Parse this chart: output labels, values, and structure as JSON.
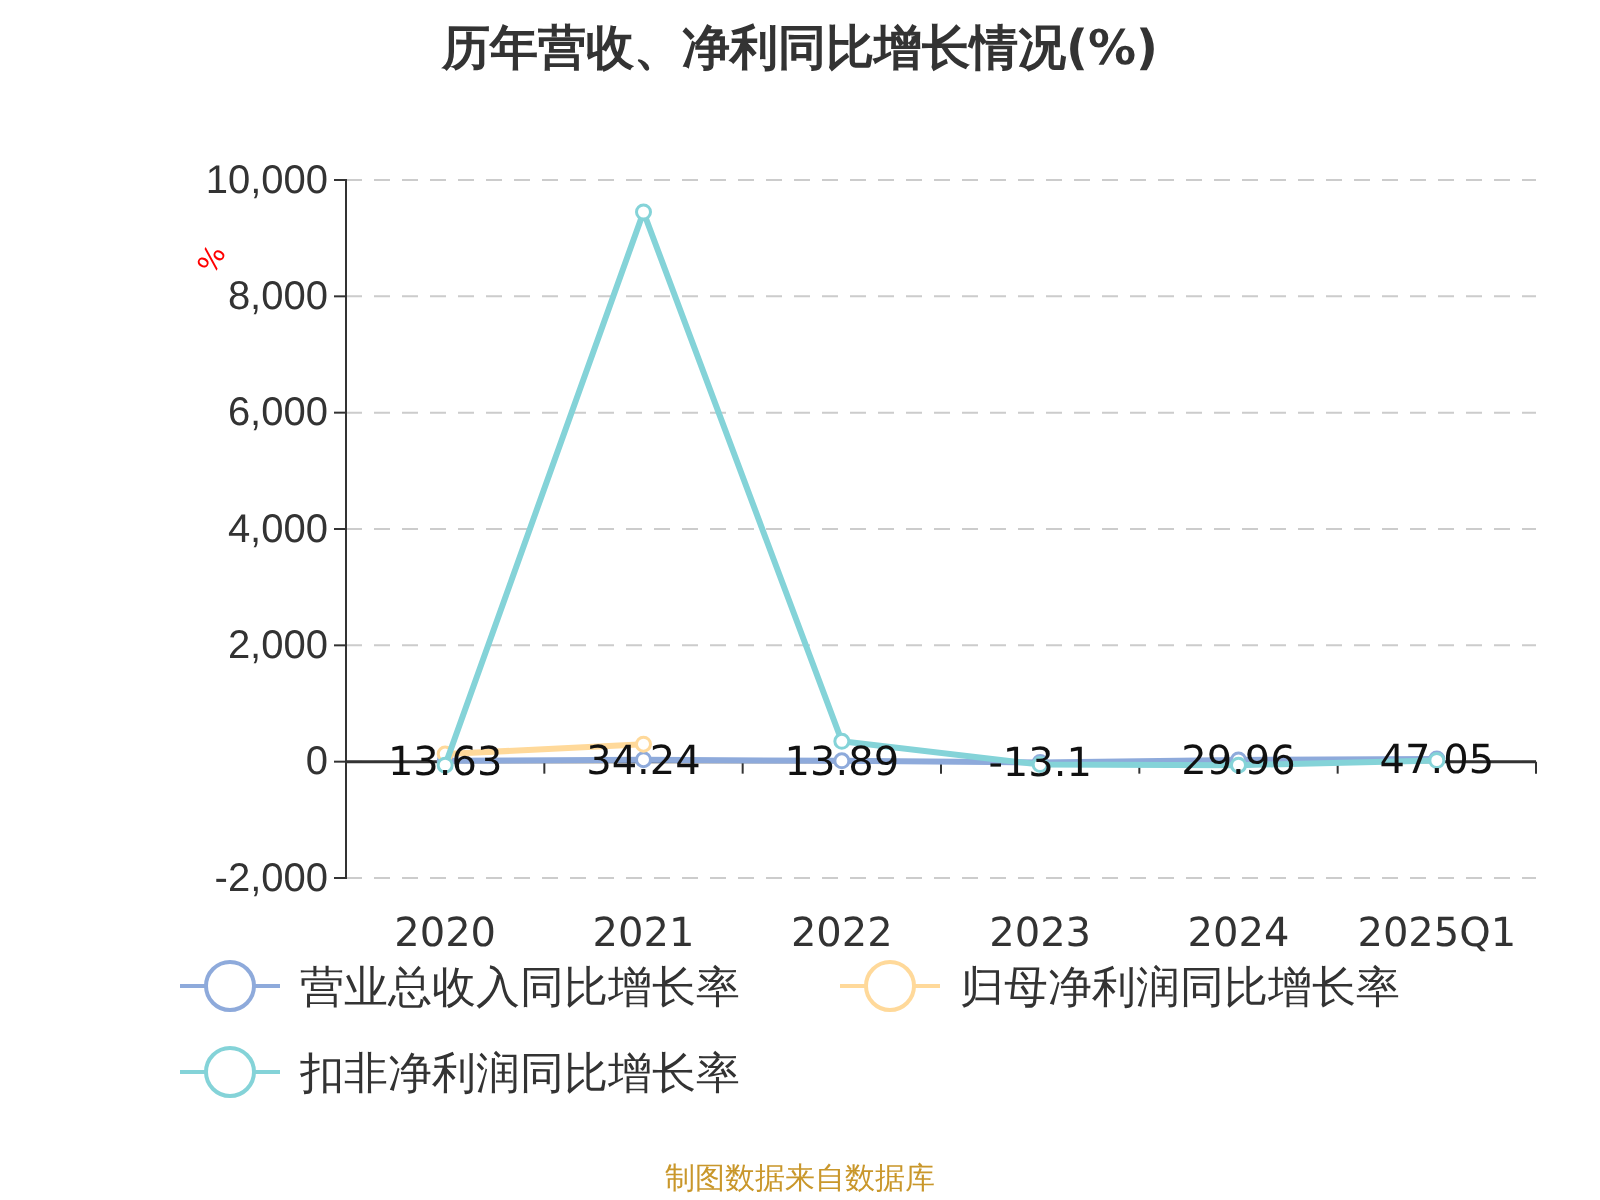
{
  "chart_data": {
    "type": "line",
    "title": "历年营收、净利同比增长情况(%)",
    "ylabel": "%",
    "categories": [
      "2020",
      "2021",
      "2022",
      "2023",
      "2024",
      "2025Q1"
    ],
    "series": [
      {
        "name": "营业总收入同比增长率",
        "color": "#8eaadb",
        "values": [
          13.63,
          34.24,
          13.89,
          -13.1,
          29.96,
          47.05
        ],
        "value_labels": [
          "13.63",
          "34.24",
          "13.89",
          "-13.1",
          "29.96",
          "47.05"
        ]
      },
      {
        "name": "归母净利润同比增长率",
        "color": "#ffd99a",
        "values": [
          130,
          300,
          null,
          null,
          null,
          null
        ]
      },
      {
        "name": "扣非净利润同比增长率",
        "color": "#84d3d8",
        "values": [
          -60,
          9450,
          350,
          -50,
          -60,
          20
        ]
      }
    ],
    "ylim": [
      -2000,
      10000
    ],
    "yticks": [
      {
        "value": -2000,
        "label": "-2,000"
      },
      0,
      {
        "value": 2000,
        "label": "2,000"
      },
      {
        "value": 4000,
        "label": "4,000"
      },
      {
        "value": 6000,
        "label": "6,000"
      },
      {
        "value": 8000,
        "label": "8,000"
      },
      {
        "value": 10000,
        "label": "10,000"
      }
    ],
    "grid": "y",
    "legend": "bottom",
    "marker": "circle",
    "line_style": "solid",
    "annotations": [
      "制图数据来自数据库"
    ]
  }
}
